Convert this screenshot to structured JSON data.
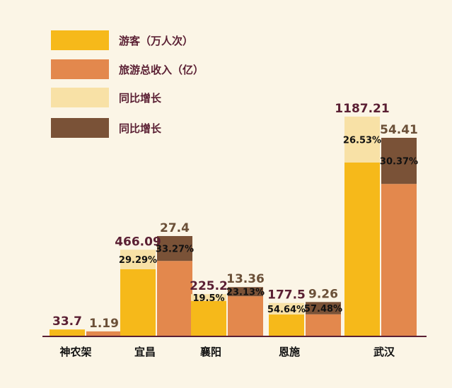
{
  "colors": {
    "background": "#fbf5e6",
    "visitors": "#f6b91a",
    "revenue": "#e3884d",
    "visitors_growth": "#f8e1a6",
    "revenue_growth": "#7a5237",
    "axis": "#5a1f33",
    "text_dark": "#5a1f33",
    "text_brown": "#6b5038",
    "text_pct": "#111111"
  },
  "chart_data": {
    "type": "bar",
    "categories": [
      "神农架",
      "宜昌",
      "襄阳",
      "恩施",
      "武汉"
    ],
    "legend": [
      "游客（万人次）",
      "旅游总收入（亿）",
      "同比增长",
      "同比增长"
    ],
    "legend_placement": "top-left",
    "grid": false,
    "series": [
      {
        "name": "游客（万人次）",
        "values": [
          33.7,
          466.09,
          225.2,
          177.5,
          1187.21
        ],
        "value_labels": [
          "33.7",
          "466.09",
          "225.2",
          "177.5",
          "1187.21"
        ],
        "growth_pct": [
          null,
          29.29,
          19.5,
          54.64,
          26.53
        ],
        "growth_labels": [
          "",
          "29.29%",
          "19.5%",
          "54.64%",
          "26.53%"
        ]
      },
      {
        "name": "旅游总收入（亿）",
        "values": [
          1.19,
          27.4,
          13.36,
          9.26,
          54.41
        ],
        "value_labels": [
          "1.19",
          "27.4",
          "13.36",
          "9.26",
          "54.41"
        ],
        "growth_pct": [
          null,
          33.27,
          23.13,
          57.48,
          30.37
        ],
        "growth_labels": [
          "",
          "33.27%",
          "23.13%",
          "57.48%",
          "30.37%"
        ]
      }
    ]
  }
}
